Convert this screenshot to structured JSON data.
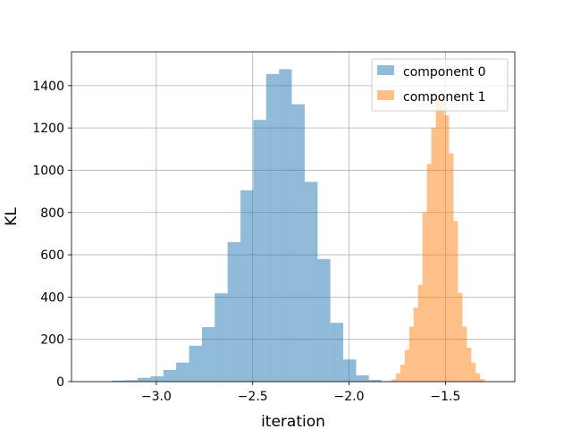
{
  "chart_data": {
    "type": "bar",
    "title": "",
    "xlabel": "iteration",
    "ylabel": "KL",
    "xlim": [
      -3.44,
      -1.14
    ],
    "ylim": [
      0,
      1560
    ],
    "grid": true,
    "legend_position": "top-right",
    "x_ticks": [
      -3.0,
      -2.5,
      -2.0,
      -1.5
    ],
    "x_tick_labels": [
      "−3.0",
      "−2.5",
      "−2.0",
      "−1.5"
    ],
    "y_ticks": [
      0,
      200,
      400,
      600,
      800,
      1000,
      1200,
      1400
    ],
    "y_tick_labels": [
      "0",
      "200",
      "400",
      "600",
      "800",
      "1000",
      "1200",
      "1400"
    ],
    "series": [
      {
        "name": "component 0",
        "color": "#1f77b4",
        "opacity": 0.5,
        "bin_edges": [
          -3.23,
          -3.163,
          -3.097,
          -3.03,
          -2.963,
          -2.897,
          -2.83,
          -2.763,
          -2.697,
          -2.63,
          -2.563,
          -2.497,
          -2.43,
          -2.363,
          -2.297,
          -2.23,
          -2.163,
          -2.097,
          -2.03,
          -1.963,
          -1.897,
          -1.83
        ],
        "counts": [
          5,
          7,
          18,
          25,
          55,
          90,
          170,
          258,
          418,
          660,
          905,
          1238,
          1455,
          1478,
          1312,
          945,
          580,
          278,
          105,
          30,
          8
        ]
      },
      {
        "name": "component 1",
        "color": "#ff7f0e",
        "opacity": 0.5,
        "bin_edges": [
          -1.803,
          -1.78,
          -1.757,
          -1.734,
          -1.711,
          -1.688,
          -1.665,
          -1.642,
          -1.619,
          -1.596,
          -1.573,
          -1.55,
          -1.527,
          -1.504,
          -1.481,
          -1.458,
          -1.435,
          -1.412,
          -1.389,
          -1.366,
          -1.343,
          -1.32,
          -1.297
        ],
        "counts": [
          3,
          10,
          38,
          80,
          150,
          260,
          350,
          458,
          800,
          1030,
          1200,
          1340,
          1380,
          1260,
          1080,
          760,
          420,
          260,
          160,
          90,
          40,
          12
        ]
      }
    ]
  }
}
